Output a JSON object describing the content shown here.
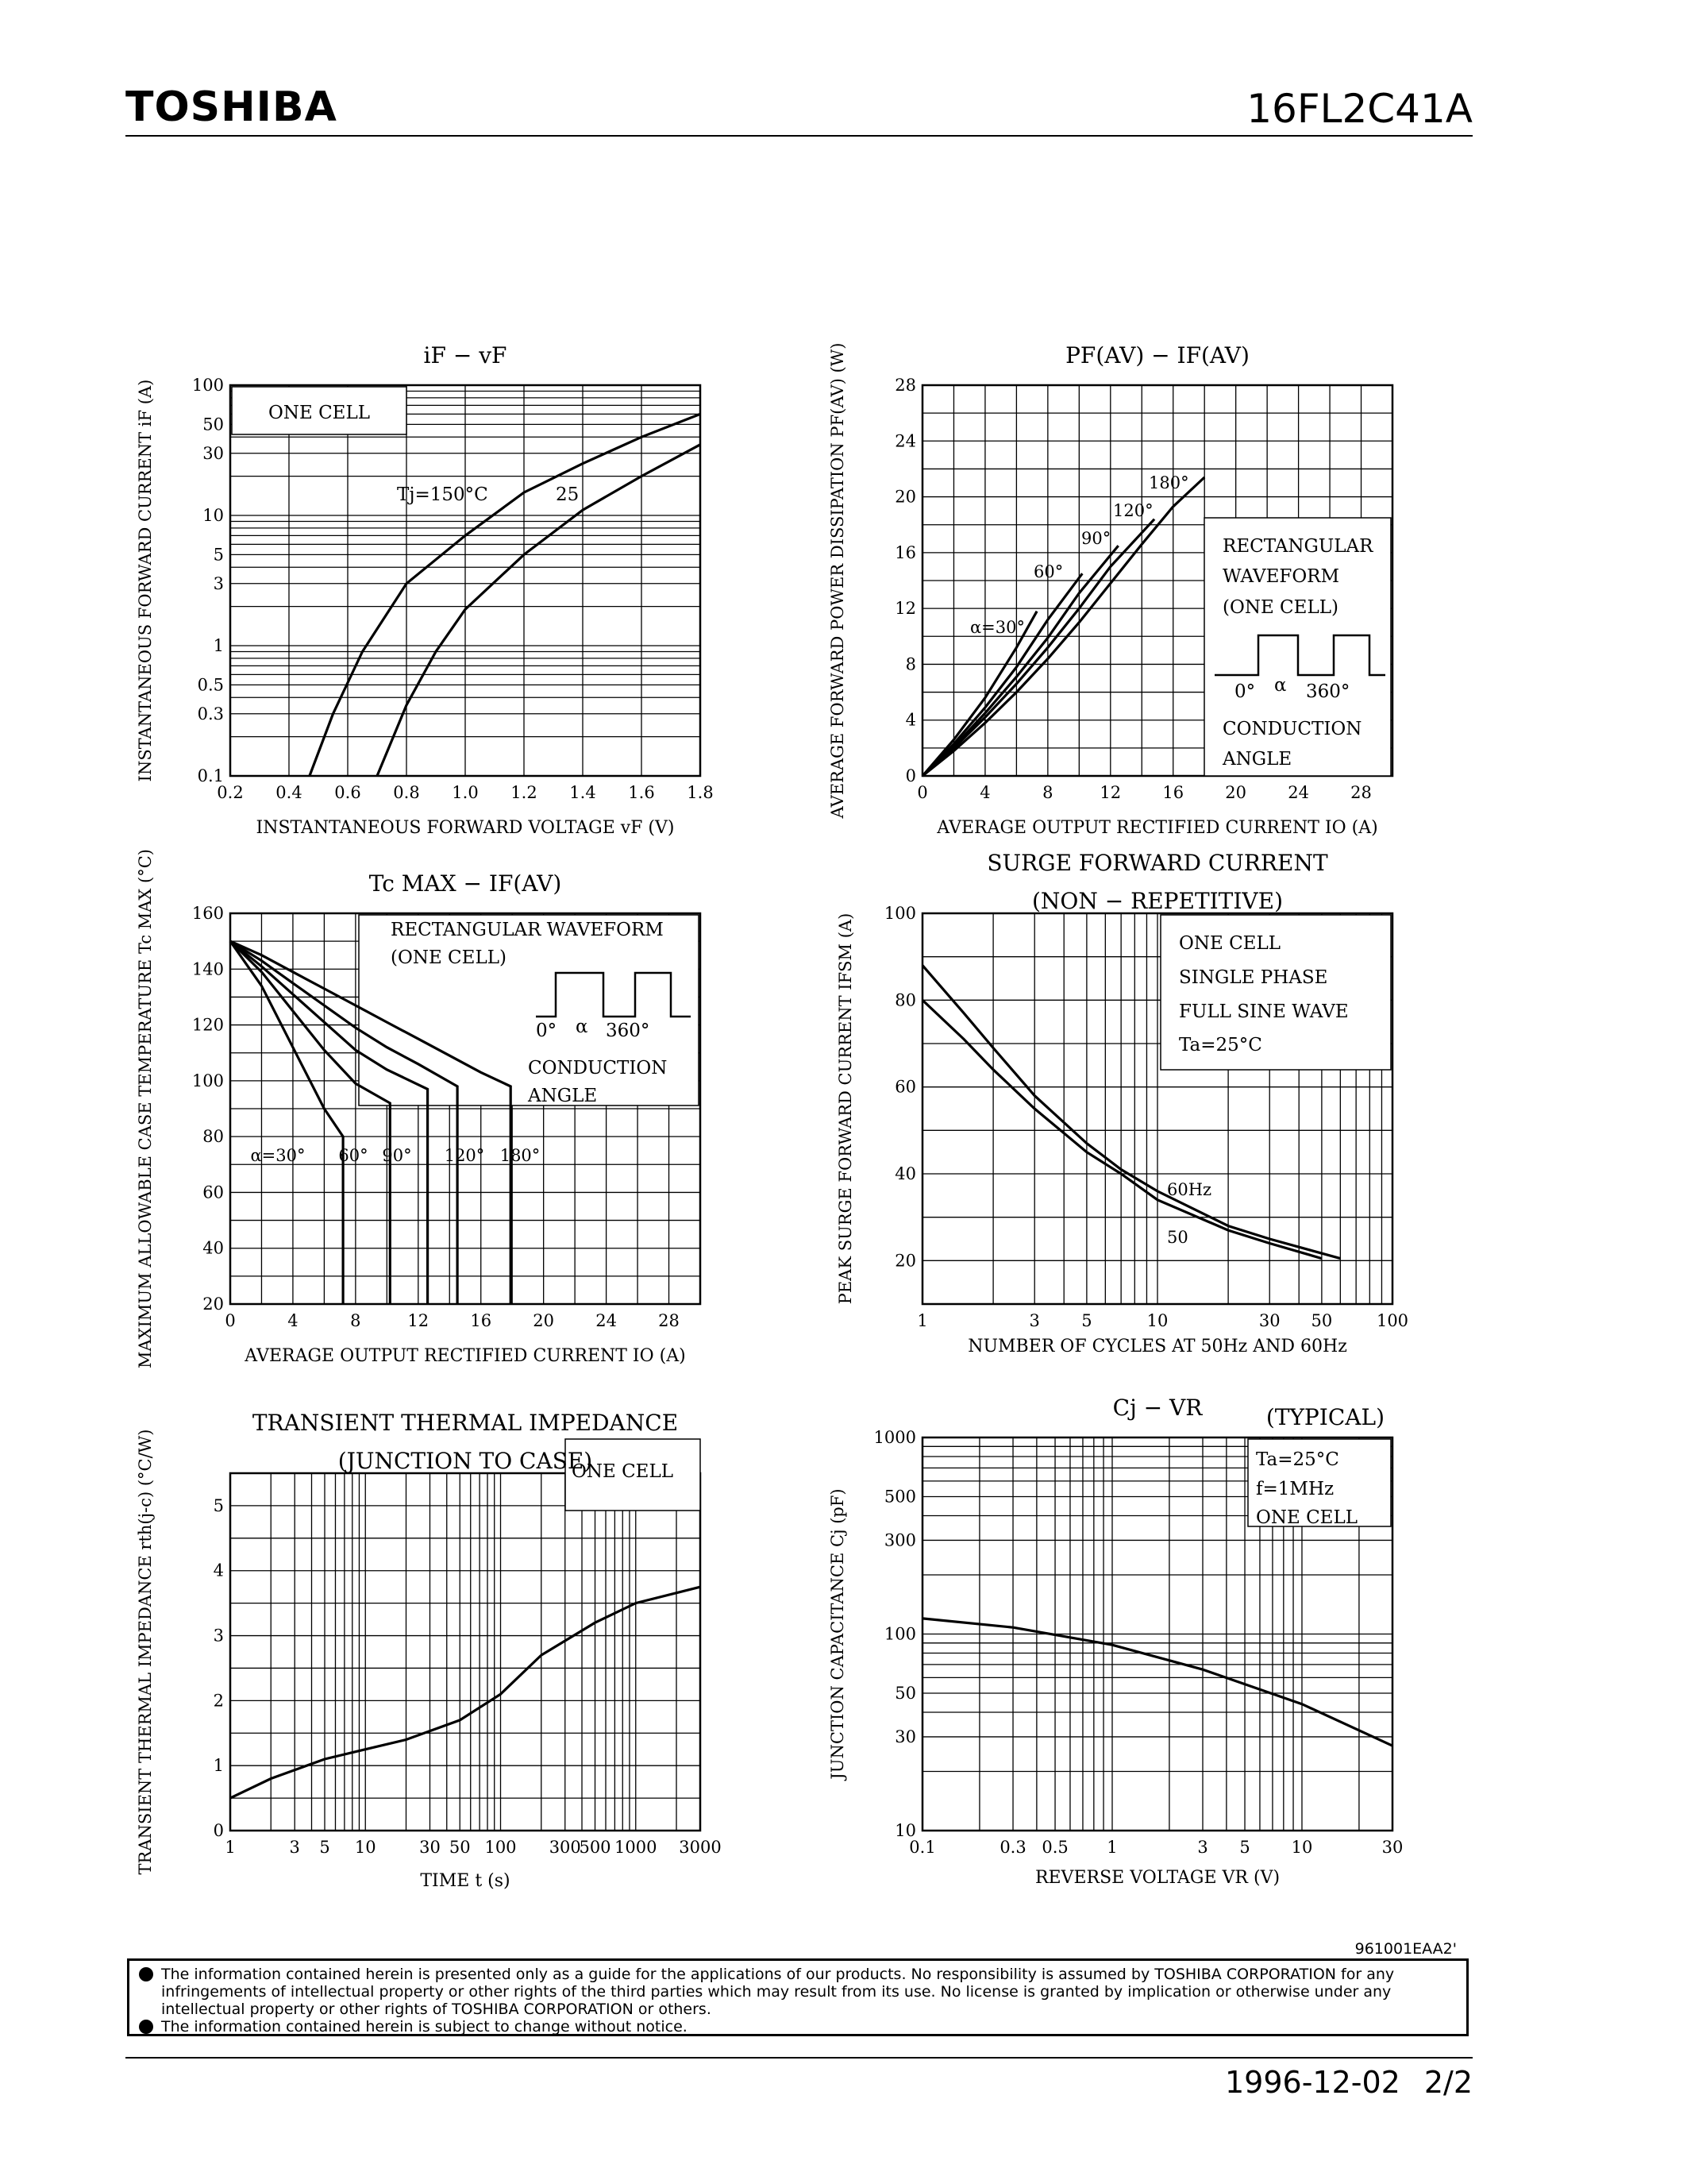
{
  "header": {
    "brand": "TOSHIBA",
    "part_number": "16FL2C41A"
  },
  "footer": {
    "doc_id": "961001EAA2'",
    "date": "1996-12-02",
    "page": "2/2",
    "notice_lines": [
      "The information contained herein is presented only as a guide for the applications of our products. No responsibility is assumed by TOSHIBA CORPORATION for any infringements of intellectual property or other rights of the third parties which may result from its use. No license is granted by implication or otherwise under any intellectual property or other rights of TOSHIBA CORPORATION or others.",
      "The information contained herein is subject to change without notice."
    ]
  },
  "chart_data": [
    {
      "id": "if-vf",
      "type": "line",
      "title": "iF − vF",
      "xlabel": "INSTANTANEOUS FORWARD VOLTAGE vF (V)",
      "ylabel": "INSTANTANEOUS FORWARD CURRENT iF (A)",
      "xlim": [
        0.2,
        1.8
      ],
      "ylim": [
        0.1,
        100
      ],
      "yscale": "log",
      "xticks": [
        0.2,
        0.4,
        0.6,
        0.8,
        1.0,
        1.2,
        1.4,
        1.6,
        1.8
      ],
      "xticklabels": [
        "0.2",
        "0.4",
        "0.6",
        "0.8",
        "1.0",
        "1.2",
        "1.4",
        "1.6",
        "1.8"
      ],
      "yticks": [
        0.1,
        0.3,
        0.5,
        1,
        3,
        5,
        10,
        30,
        50,
        100
      ],
      "yticklabels": [
        "0.1",
        "0.3",
        "0.5",
        "1",
        "3",
        "5",
        "10",
        "30",
        "50",
        "100"
      ],
      "annotations": [
        "ONE CELL",
        "Tj=150°C",
        "25"
      ],
      "series": [
        {
          "name": "Tj=150°C",
          "x": [
            0.47,
            0.55,
            0.65,
            0.8,
            1.0,
            1.2,
            1.4,
            1.6,
            1.8
          ],
          "y": [
            0.1,
            0.3,
            0.9,
            3,
            7,
            15,
            25,
            40,
            60
          ]
        },
        {
          "name": "25",
          "x": [
            0.7,
            0.8,
            0.9,
            1.0,
            1.2,
            1.4,
            1.6,
            1.8
          ],
          "y": [
            0.1,
            0.35,
            0.9,
            1.9,
            5,
            11,
            20,
            35
          ]
        }
      ]
    },
    {
      "id": "pf-if",
      "type": "line",
      "title": "PF(AV) − IF(AV)",
      "xlabel": "AVERAGE OUTPUT RECTIFIED CURRENT IO (A)",
      "ylabel": "AVERAGE FORWARD POWER DISSIPATION PF(AV) (W)",
      "xlim": [
        0,
        30
      ],
      "ylim": [
        0,
        28
      ],
      "xticks": [
        0,
        4,
        8,
        12,
        16,
        20,
        24,
        28
      ],
      "xticklabels": [
        "0",
        "4",
        "8",
        "12",
        "16",
        "20",
        "24",
        "28"
      ],
      "yticks": [
        0,
        4,
        8,
        12,
        16,
        20,
        24,
        28
      ],
      "yticklabels": [
        "0",
        "4",
        "8",
        "12",
        "16",
        "20",
        "24",
        "28"
      ],
      "annotations": [
        "RECTANGULAR",
        "WAVEFORM",
        "(ONE CELL)",
        "0°",
        "α",
        "360°",
        "CONDUCTION",
        "ANGLE"
      ],
      "series": [
        {
          "name": "α=30°",
          "x": [
            0,
            2,
            4,
            6,
            7.3
          ],
          "y": [
            0,
            2.6,
            5.6,
            9.2,
            11.8
          ]
        },
        {
          "name": "60°",
          "x": [
            0,
            2,
            4,
            6,
            8,
            10.2
          ],
          "y": [
            0,
            2.3,
            4.9,
            7.8,
            11.2,
            14.5
          ]
        },
        {
          "name": "90°",
          "x": [
            0,
            2,
            4,
            6,
            8,
            10,
            12.5
          ],
          "y": [
            0,
            2.1,
            4.5,
            7.1,
            9.9,
            13.1,
            16.5
          ]
        },
        {
          "name": "120°",
          "x": [
            0,
            2,
            4,
            6,
            8,
            10,
            12,
            14.8
          ],
          "y": [
            0,
            2,
            4.2,
            6.6,
            9.2,
            12,
            15,
            18.4
          ]
        },
        {
          "name": "180°",
          "x": [
            0,
            2,
            4,
            6,
            8,
            10,
            12,
            14,
            16,
            18
          ],
          "y": [
            0,
            1.8,
            3.8,
            6,
            8.4,
            11,
            13.8,
            16.6,
            19.3,
            21.4
          ]
        }
      ]
    },
    {
      "id": "tc-if",
      "type": "line",
      "title": "Tc MAX − IF(AV)",
      "xlabel": "AVERAGE OUTPUT RECTIFIED CURRENT IO (A)",
      "ylabel": "MAXIMUM ALLOWABLE CASE TEMPERATURE Tc MAX (°C)",
      "xlim": [
        0,
        30
      ],
      "ylim": [
        20,
        160
      ],
      "xticks": [
        0,
        4,
        8,
        12,
        16,
        20,
        24,
        28
      ],
      "xticklabels": [
        "0",
        "4",
        "8",
        "12",
        "16",
        "20",
        "24",
        "28"
      ],
      "yticks": [
        20,
        40,
        60,
        80,
        100,
        120,
        140,
        160
      ],
      "yticklabels": [
        "20",
        "40",
        "60",
        "80",
        "100",
        "120",
        "140",
        "160"
      ],
      "annotations": [
        "RECTANGULAR WAVEFORM",
        "(ONE CELL)",
        "0°",
        "α",
        "360°",
        "CONDUCTION",
        "ANGLE"
      ],
      "series": [
        {
          "name": "α=30°",
          "x": [
            0,
            2,
            4,
            6,
            7.2,
            7.2
          ],
          "y": [
            150,
            134,
            112,
            90,
            80,
            20
          ]
        },
        {
          "name": "60°",
          "x": [
            0,
            2,
            4,
            6,
            8,
            10.2,
            10.2
          ],
          "y": [
            150,
            139,
            125,
            111,
            99,
            92,
            20
          ]
        },
        {
          "name": "90°",
          "x": [
            0,
            2,
            4,
            6,
            8,
            10,
            12.6,
            12.6
          ],
          "y": [
            150,
            141,
            131,
            121,
            111,
            104,
            97,
            20
          ]
        },
        {
          "name": "120°",
          "x": [
            0,
            2,
            4,
            6,
            8,
            10,
            12,
            14.5,
            14.5
          ],
          "y": [
            150,
            143,
            135,
            127,
            119,
            112,
            106,
            98,
            20
          ]
        },
        {
          "name": "180°",
          "x": [
            0,
            2,
            4,
            6,
            8,
            10,
            12,
            14,
            16,
            17.9,
            17.9
          ],
          "y": [
            150,
            145,
            139,
            133,
            127,
            121,
            115,
            109,
            103,
            98,
            20
          ]
        }
      ],
      "series_labels": [
        "α=30°",
        "60°",
        "90°",
        "120°",
        "180°"
      ]
    },
    {
      "id": "surge",
      "type": "line",
      "title": "SURGE FORWARD CURRENT",
      "subtitle": "(NON − REPETITIVE)",
      "xlabel": "NUMBER OF CYCLES AT 50Hz AND 60Hz",
      "ylabel": "PEAK SURGE FORWARD CURRENT IFSM (A)",
      "xlim": [
        1,
        100
      ],
      "xscale": "log",
      "ylim": [
        10,
        100
      ],
      "xticks": [
        1,
        3,
        5,
        10,
        30,
        50,
        100
      ],
      "xticklabels": [
        "1",
        "3",
        "5",
        "10",
        "30",
        "50",
        "100"
      ],
      "yticks": [
        20,
        40,
        60,
        80,
        100
      ],
      "yticklabels": [
        "20",
        "40",
        "60",
        "80",
        "100"
      ],
      "annotations": [
        "ONE CELL",
        "SINGLE PHASE",
        "FULL SINE WAVE",
        "Ta=25°C"
      ],
      "series": [
        {
          "name": "60Hz",
          "x": [
            1,
            1.5,
            2,
            3,
            5,
            7,
            10,
            20,
            30,
            60
          ],
          "y": [
            88,
            77,
            69,
            58,
            47,
            41,
            36,
            28,
            25,
            20.5
          ]
        },
        {
          "name": "50",
          "x": [
            1,
            1.5,
            2,
            3,
            5,
            7,
            10,
            20,
            30,
            50
          ],
          "y": [
            80,
            71,
            64,
            55,
            45,
            40,
            34,
            27,
            24,
            20.5
          ]
        }
      ]
    },
    {
      "id": "rth",
      "type": "line",
      "title": "TRANSIENT THERMAL IMPEDANCE",
      "subtitle": "(JUNCTION TO CASE)",
      "xlabel": "TIME t (s)",
      "ylabel": "TRANSIENT THERMAL IMPEDANCE rth(j-c) (°C/W)",
      "xlim": [
        1,
        3000
      ],
      "xscale": "log",
      "ylim": [
        0,
        5.5
      ],
      "xticks": [
        1,
        3,
        5,
        10,
        30,
        50,
        100,
        300,
        500,
        1000,
        3000
      ],
      "xticklabels": [
        "1",
        "3",
        "5",
        "10",
        "30",
        "50",
        "100",
        "300",
        "500",
        "1000",
        "3000"
      ],
      "yticks": [
        0,
        1,
        2,
        3,
        4,
        5
      ],
      "yticklabels": [
        "0",
        "1",
        "2",
        "3",
        "4",
        "5"
      ],
      "annotations": [
        "ONE CELL"
      ],
      "series": [
        {
          "name": "rth",
          "x": [
            1,
            2,
            5,
            10,
            20,
            50,
            100,
            200,
            500,
            1000,
            3000
          ],
          "y": [
            0.5,
            0.8,
            1.1,
            1.25,
            1.4,
            1.7,
            2.1,
            2.7,
            3.2,
            3.5,
            3.75
          ]
        }
      ]
    },
    {
      "id": "cj-vr",
      "type": "line",
      "title": "Cj − VR",
      "subtitle": "(TYPICAL)",
      "xlabel": "REVERSE VOLTAGE VR (V)",
      "ylabel": "JUNCTION CAPACITANCE Cj (pF)",
      "xlim": [
        0.1,
        30
      ],
      "xscale": "log",
      "ylim": [
        10,
        1000
      ],
      "yscale": "log",
      "xticks": [
        0.1,
        0.3,
        0.5,
        1,
        3,
        5,
        10,
        30
      ],
      "xticklabels": [
        "0.1",
        "0.3",
        "0.5",
        "1",
        "3",
        "5",
        "10",
        "30"
      ],
      "yticks": [
        10,
        30,
        50,
        100,
        300,
        500,
        1000
      ],
      "yticklabels": [
        "10",
        "30",
        "50",
        "100",
        "300",
        "500",
        "1000"
      ],
      "annotations": [
        "Ta=25°C",
        "f=1MHz",
        "ONE CELL"
      ],
      "series": [
        {
          "name": "Cj",
          "x": [
            0.1,
            0.3,
            1,
            3,
            10,
            30
          ],
          "y": [
            120,
            108,
            88,
            66,
            44,
            27
          ]
        }
      ]
    }
  ]
}
